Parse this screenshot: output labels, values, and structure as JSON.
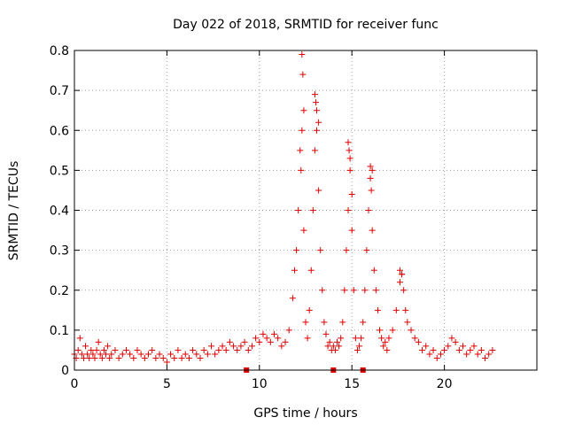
{
  "chart_data": {
    "type": "scatter",
    "title": "Day 022 of 2018, SRMTID for receiver func",
    "xlabel": "GPS time / hours",
    "ylabel": "SRMTID / TECUs",
    "xlim": [
      0,
      25
    ],
    "ylim": [
      0,
      0.8
    ],
    "xticks": [
      0,
      5,
      10,
      15,
      20
    ],
    "xtick_labels": [
      "0",
      "5",
      "10",
      "15",
      "20"
    ],
    "yticks": [
      0,
      0.1,
      0.2,
      0.3,
      0.4,
      0.5,
      0.6,
      0.7,
      0.8
    ],
    "ytick_labels": [
      "0",
      "0.1",
      "0.2",
      "0.3",
      "0.4",
      "0.5",
      "0.6",
      "0.7",
      "0.8"
    ],
    "grid": true,
    "marker": "plus",
    "color": "#e00000",
    "series": [
      {
        "name": "SRMTID",
        "x": [
          0.0,
          0.1,
          0.2,
          0.3,
          0.4,
          0.5,
          0.6,
          0.7,
          0.8,
          0.9,
          1.0,
          1.1,
          1.2,
          1.3,
          1.4,
          1.5,
          1.6,
          1.7,
          1.8,
          1.9,
          2.0,
          2.2,
          2.4,
          2.6,
          2.8,
          3.0,
          3.2,
          3.4,
          3.6,
          3.8,
          4.0,
          4.2,
          4.4,
          4.6,
          4.8,
          5.0,
          5.2,
          5.4,
          5.6,
          5.8,
          6.0,
          6.2,
          6.4,
          6.6,
          6.8,
          7.0,
          7.2,
          7.4,
          7.6,
          7.8,
          8.0,
          8.2,
          8.4,
          8.6,
          8.8,
          9.0,
          9.2,
          9.4,
          9.6,
          9.8,
          10.0,
          10.2,
          10.4,
          10.6,
          10.8,
          11.0,
          11.2,
          11.4,
          11.6,
          11.8,
          11.9,
          12.0,
          12.1,
          12.2,
          12.3,
          12.4,
          12.5,
          12.6,
          12.7,
          12.8,
          12.9,
          13.0,
          13.1,
          13.2,
          13.3,
          13.4,
          13.5,
          13.6,
          13.7,
          13.8,
          13.9,
          14.0,
          14.1,
          14.2,
          14.3,
          14.4,
          14.5,
          14.6,
          14.7,
          14.8,
          14.9,
          15.0,
          15.1,
          15.2,
          15.3,
          15.4,
          15.5,
          15.6,
          15.7,
          15.8,
          15.9,
          16.0,
          16.1,
          16.2,
          16.3,
          16.4,
          16.5,
          16.6,
          16.7,
          16.8,
          16.9,
          17.0,
          17.2,
          17.4,
          17.6,
          17.7,
          17.8,
          17.9,
          18.0,
          18.2,
          18.4,
          18.6,
          18.8,
          19.0,
          19.2,
          19.4,
          19.6,
          19.8,
          20.0,
          20.2,
          20.4,
          20.6,
          20.8,
          21.0,
          21.2,
          21.4,
          21.6,
          21.8,
          22.0,
          22.2,
          22.4,
          22.6,
          12.3,
          12.35,
          12.4,
          13.0,
          13.05,
          13.2,
          14.8,
          14.9,
          15.0,
          16.0,
          16.1,
          17.6,
          17.7,
          12.25,
          13.1,
          14.85,
          16.05
        ],
        "y": [
          0.04,
          0.03,
          0.05,
          0.08,
          0.04,
          0.03,
          0.06,
          0.04,
          0.03,
          0.05,
          0.04,
          0.03,
          0.05,
          0.07,
          0.04,
          0.03,
          0.05,
          0.04,
          0.06,
          0.03,
          0.04,
          0.05,
          0.03,
          0.04,
          0.05,
          0.04,
          0.03,
          0.05,
          0.04,
          0.03,
          0.04,
          0.05,
          0.03,
          0.04,
          0.03,
          0.02,
          0.04,
          0.03,
          0.05,
          0.03,
          0.04,
          0.03,
          0.05,
          0.04,
          0.03,
          0.05,
          0.04,
          0.06,
          0.04,
          0.05,
          0.06,
          0.05,
          0.07,
          0.06,
          0.05,
          0.06,
          0.07,
          0.05,
          0.06,
          0.08,
          0.07,
          0.09,
          0.08,
          0.07,
          0.09,
          0.08,
          0.06,
          0.07,
          0.1,
          0.18,
          0.25,
          0.3,
          0.4,
          0.55,
          0.6,
          0.35,
          0.12,
          0.08,
          0.15,
          0.25,
          0.4,
          0.55,
          0.65,
          0.45,
          0.3,
          0.2,
          0.12,
          0.09,
          0.06,
          0.07,
          0.05,
          0.06,
          0.05,
          0.07,
          0.06,
          0.08,
          0.12,
          0.2,
          0.3,
          0.4,
          0.5,
          0.35,
          0.2,
          0.08,
          0.05,
          0.06,
          0.08,
          0.12,
          0.2,
          0.3,
          0.4,
          0.48,
          0.35,
          0.25,
          0.2,
          0.15,
          0.1,
          0.08,
          0.06,
          0.07,
          0.05,
          0.08,
          0.1,
          0.15,
          0.22,
          0.24,
          0.2,
          0.15,
          0.12,
          0.1,
          0.08,
          0.07,
          0.05,
          0.06,
          0.04,
          0.05,
          0.03,
          0.04,
          0.05,
          0.06,
          0.08,
          0.07,
          0.05,
          0.06,
          0.04,
          0.05,
          0.06,
          0.04,
          0.05,
          0.03,
          0.04,
          0.05,
          0.79,
          0.74,
          0.65,
          0.69,
          0.67,
          0.62,
          0.57,
          0.53,
          0.44,
          0.51,
          0.5,
          0.25,
          0.24,
          0.5,
          0.6,
          0.55,
          0.45
        ],
        "zero_markers_x": [
          9.3,
          14.0,
          15.6
        ]
      }
    ]
  }
}
